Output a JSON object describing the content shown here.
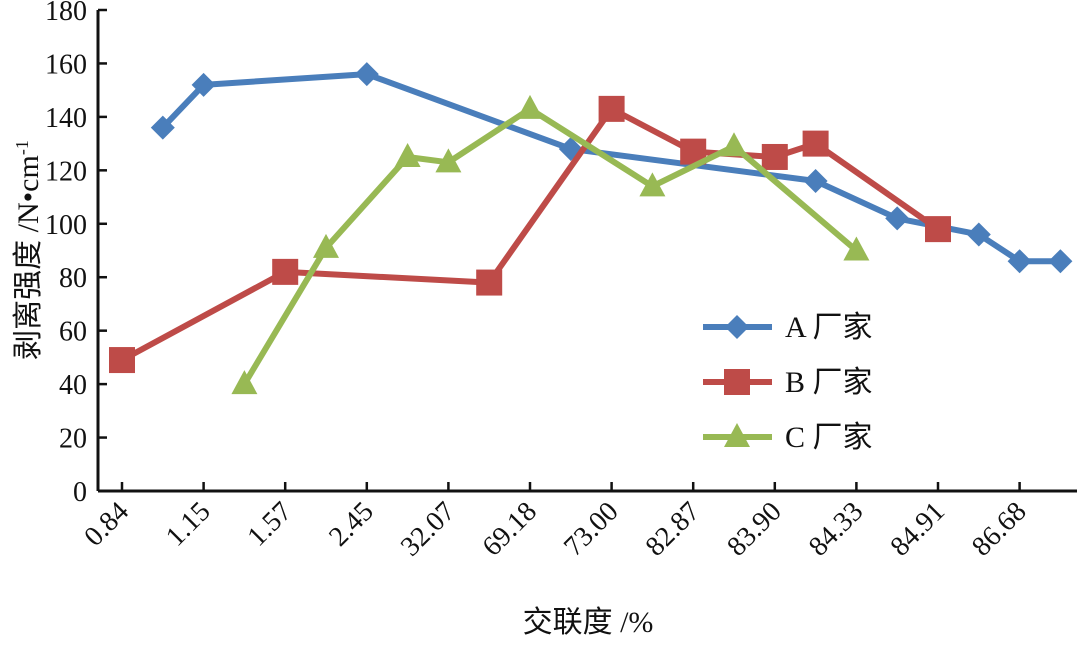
{
  "chart_data": {
    "type": "line",
    "title": "",
    "xlabel": "交联度 /%",
    "ylabel_main": "剥离强度 /N•cm",
    "ylabel_superscript": "-1",
    "ylim": [
      0,
      180
    ],
    "yticks": [
      0,
      20,
      40,
      60,
      80,
      100,
      120,
      140,
      160,
      180
    ],
    "categories": [
      "0.84",
      "1.15",
      "1.57",
      "2.45",
      "32.07",
      "69.18",
      "73.00",
      "82.87",
      "83.90",
      "84.33",
      "84.91",
      "86.68"
    ],
    "grid": false,
    "legend_position": "right-center",
    "series": [
      {
        "name": "A 厂家",
        "marker": "diamond",
        "color": "#4a7ebb",
        "x": [
          0.5,
          1,
          3,
          5.5,
          8.5,
          9.5,
          10.5,
          11,
          11.5
        ],
        "y": [
          136,
          152,
          156,
          128,
          116,
          102,
          96,
          86,
          86
        ]
      },
      {
        "name": "B 厂家",
        "marker": "square",
        "color": "#be4b48",
        "x": [
          0,
          2,
          4.5,
          6,
          7,
          8,
          8.5,
          10
        ],
        "y": [
          49,
          82,
          78,
          143,
          127,
          125,
          130,
          98
        ]
      },
      {
        "name": "C 厂家",
        "marker": "triangle",
        "color": "#98b954",
        "x": [
          1.5,
          2.5,
          3.5,
          4,
          5,
          6.5,
          7.5,
          9
        ],
        "y": [
          40,
          91,
          125,
          123,
          143,
          114,
          129,
          90
        ]
      }
    ]
  }
}
